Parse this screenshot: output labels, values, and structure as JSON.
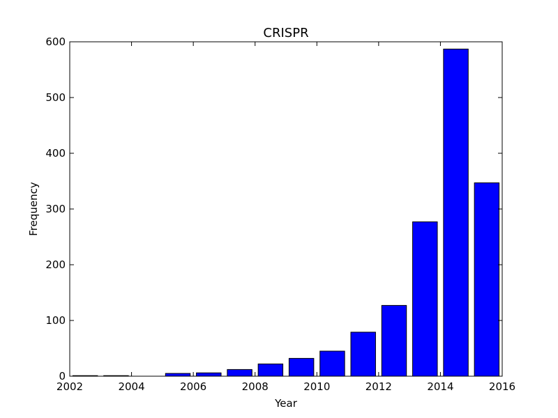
{
  "chart_data": {
    "type": "bar",
    "title": "CRISPR",
    "xlabel": "Year",
    "ylabel": "Frequency",
    "xlim": [
      2002,
      2016
    ],
    "ylim": [
      0,
      600
    ],
    "x": [
      2002,
      2003,
      2004,
      2005,
      2006,
      2007,
      2008,
      2009,
      2010,
      2011,
      2012,
      2013,
      2014,
      2015
    ],
    "values": [
      1,
      1,
      0,
      5,
      6,
      12,
      22,
      32,
      45,
      79,
      127,
      277,
      587,
      347
    ],
    "xticks": [
      "2002",
      "2004",
      "2006",
      "2008",
      "2010",
      "2012",
      "2014",
      "2016"
    ],
    "yticks": [
      "0",
      "100",
      "200",
      "300",
      "400",
      "500",
      "600"
    ],
    "bar_color": "#0000ff",
    "edge_color": "#000000",
    "grid": false,
    "legend": "none"
  }
}
